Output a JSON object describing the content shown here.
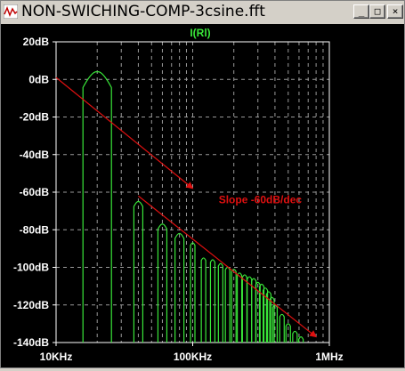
{
  "window": {
    "title": "NON-SWICHING-COMP-3csine.fft",
    "icon": "waveform-icon",
    "buttons": {
      "minimize": "_",
      "maximize": "□",
      "close": "×"
    }
  },
  "chart_data": {
    "type": "line",
    "title": "I(Rl)",
    "xscale": "log",
    "x_ticks": [
      "10KHz",
      "100KHz",
      "1MHz"
    ],
    "y_ticks": [
      "20dB",
      "0dB",
      "-20dB",
      "-40dB",
      "-60dB",
      "-80dB",
      "-100dB",
      "-120dB",
      "-140dB"
    ],
    "xlim": [
      10000,
      1000000
    ],
    "ylim": [
      -140,
      20
    ],
    "grid": true,
    "colors": {
      "trace": "#39e639",
      "annotation": "#e01010",
      "axis": "#ffffff",
      "grid": "#9a9a9a"
    },
    "series": [
      {
        "peaks": [
          {
            "f": 20000,
            "db": 4
          },
          {
            "f": 40000,
            "db": -65
          },
          {
            "f": 60000,
            "db": -77
          },
          {
            "f": 80000,
            "db": -82
          },
          {
            "f": 100000,
            "db": -87
          },
          {
            "f": 120000,
            "db": -95
          },
          {
            "f": 140000,
            "db": -96
          },
          {
            "f": 160000,
            "db": -98
          },
          {
            "f": 180000,
            "db": -100
          },
          {
            "f": 200000,
            "db": -101
          },
          {
            "f": 220000,
            "db": -103
          },
          {
            "f": 240000,
            "db": -104
          },
          {
            "f": 260000,
            "db": -105
          },
          {
            "f": 280000,
            "db": -106
          },
          {
            "f": 300000,
            "db": -108
          },
          {
            "f": 320000,
            "db": -109
          },
          {
            "f": 340000,
            "db": -111
          },
          {
            "f": 360000,
            "db": -113
          },
          {
            "f": 380000,
            "db": -116
          },
          {
            "f": 400000,
            "db": -120
          },
          {
            "f": 450000,
            "db": -125
          },
          {
            "f": 500000,
            "db": -130
          },
          {
            "f": 560000,
            "db": -134
          },
          {
            "f": 620000,
            "db": -137
          }
        ]
      }
    ],
    "annotations": [
      {
        "text": "Slope -60dB/dec"
      }
    ],
    "slope_lines": [
      {
        "from": {
          "f": 10000,
          "db": 1
        },
        "to": {
          "f": 100000,
          "db": -58
        }
      },
      {
        "from": {
          "f": 40000,
          "db": -62
        },
        "to": {
          "f": 800000,
          "db": -137
        }
      }
    ],
    "label_anchor": {
      "f": 155000,
      "db": -66
    }
  }
}
